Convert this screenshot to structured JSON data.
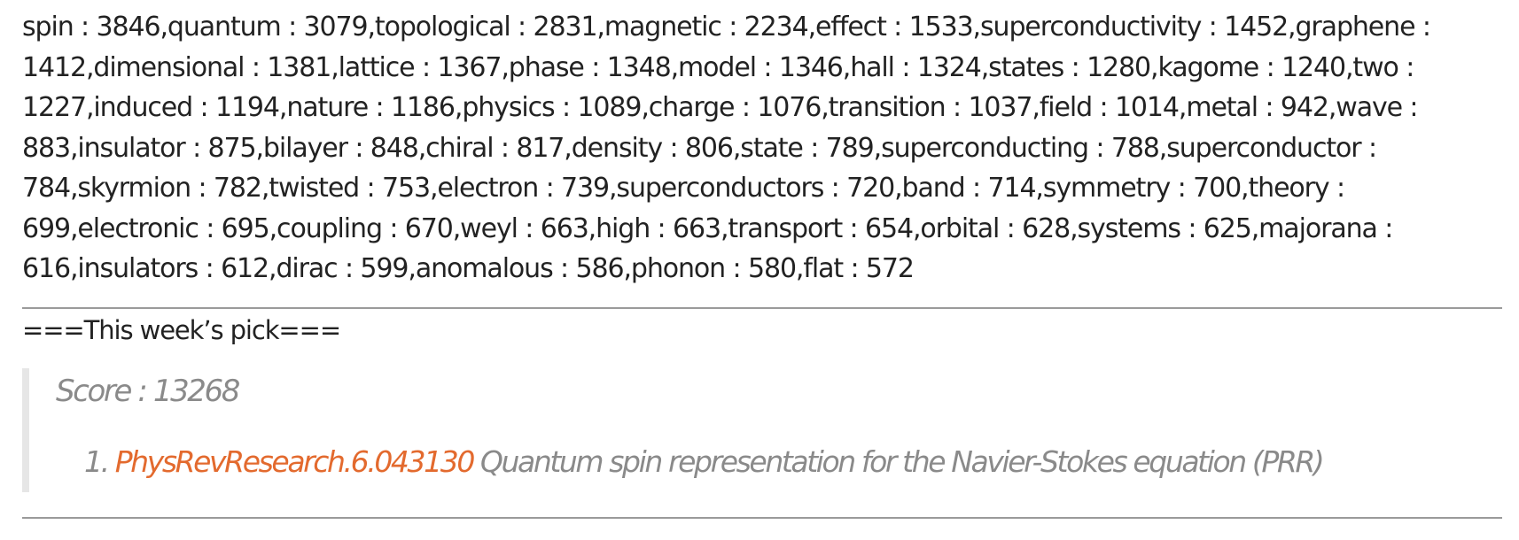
{
  "keywords": {
    "text": "spin : 3846,quantum : 3079,topological : 2831,magnetic : 2234,effect : 1533,superconductivity : 1452,graphene : 1412,dimensional : 1381,lattice : 1367,phase : 1348,model : 1346,hall : 1324,states : 1280,kagome : 1240,two : 1227,induced : 1194,nature : 1186,physics : 1089,charge : 1076,transition : 1037,field : 1014,metal : 942,wave : 883,insulator : 875,bilayer : 848,chiral : 817,density : 806,state : 789,superconducting : 788,superconductor : 784,skyrmion : 782,twisted : 753,electron : 739,superconductors : 720,band : 714,symmetry : 700,theory : 699,electronic : 695,coupling : 670,weyl : 663,high : 663,transport : 654,orbital : 628,systems : 625,majorana : 616,insulators : 612,dirac : 599,anomalous : 586,phonon : 580,flat : 572"
  },
  "pick": {
    "heading": "===This week’s pick===",
    "score": "Score : 13268",
    "items": [
      {
        "number": "1.",
        "link_text": "PhysRevResearch.6.043130",
        "title": "Quantum spin representation for the Navier-Stokes equation (PRR)"
      }
    ]
  },
  "colors": {
    "link": "#e36a2e",
    "quote_text": "#8a8a8a",
    "quote_bar": "#e6e6e6",
    "rule": "#9a9a9a"
  }
}
